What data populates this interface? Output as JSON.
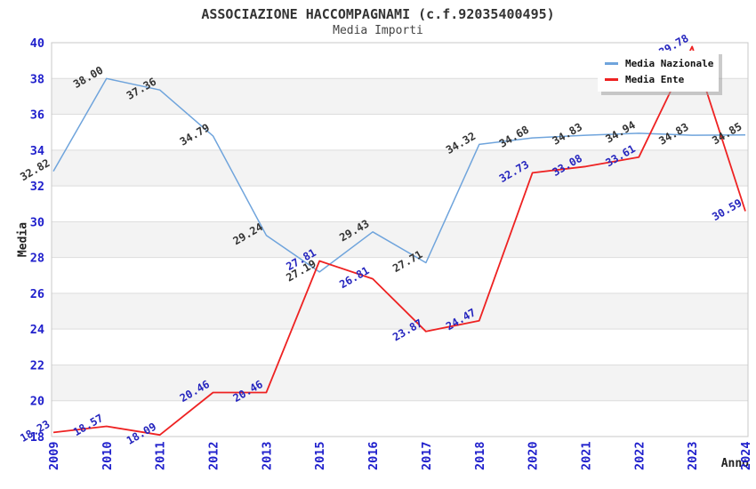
{
  "title": "ASSOCIAZIONE HACCOMPAGNAMI (c.f.92035400495)",
  "subtitle": "Media Importi",
  "legend": {
    "items": [
      {
        "label": "Media Nazionale",
        "color": "#6FA4DC"
      },
      {
        "label": "Media Ente",
        "color": "#EE2222"
      }
    ]
  },
  "chart_data": {
    "type": "line",
    "title": "ASSOCIAZIONE HACCOMPAGNAMI (c.f.92035400495)",
    "subtitle": "Media Importi",
    "xlabel": "Anno",
    "ylabel": "Media",
    "categories": [
      "2009",
      "2010",
      "2011",
      "2012",
      "2013",
      "2015",
      "2016",
      "2017",
      "2018",
      "2020",
      "2021",
      "2022",
      "2023",
      "2024"
    ],
    "series": [
      {
        "name": "Media Nazionale",
        "color": "#6FA4DC",
        "label_color": "#333333",
        "line_width": 1.5,
        "values": [
          32.82,
          38.0,
          37.36,
          34.79,
          29.24,
          27.19,
          29.43,
          27.71,
          34.32,
          34.68,
          34.83,
          34.94,
          34.83,
          34.85
        ]
      },
      {
        "name": "Media Ente",
        "color": "#EE2222",
        "label_color": "#2525BE",
        "line_width": 1.8,
        "values": [
          18.23,
          18.57,
          18.09,
          20.46,
          20.46,
          27.81,
          26.81,
          23.87,
          24.47,
          32.73,
          33.08,
          33.61,
          39.78,
          30.59
        ]
      }
    ],
    "ylim": [
      18,
      40
    ],
    "ytick_step": 2,
    "yticks": [
      18,
      20,
      22,
      24,
      26,
      28,
      30,
      32,
      34,
      36,
      38,
      40
    ],
    "grid": true,
    "band_color": "#F3F3F3",
    "grid_color": "#DDDDDD",
    "border_color": "#C8C8C8",
    "tick_label_color": "#2020CC",
    "legend_position": "top-right",
    "value_labels": true,
    "value_label_rotation": -30,
    "x_tick_rotation": -90
  }
}
